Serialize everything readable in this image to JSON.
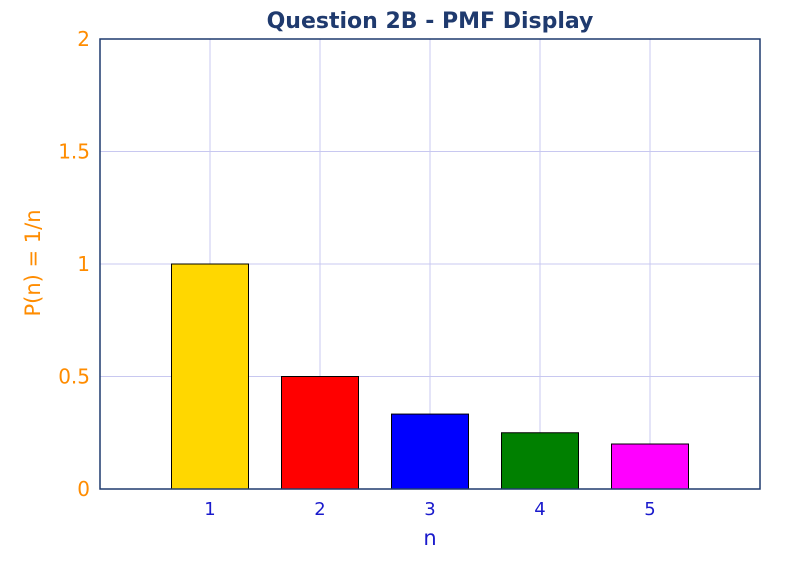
{
  "chart_data": {
    "type": "bar",
    "title": "Question 2B - PMF Display",
    "xlabel": "n",
    "ylabel": "P(n) = 1/n",
    "categories": [
      "1",
      "2",
      "3",
      "4",
      "5"
    ],
    "values": [
      1.0,
      0.5,
      0.333,
      0.25,
      0.2
    ],
    "bar_colors": [
      "#ffd700",
      "#ff0000",
      "#0000ff",
      "#008000",
      "#ff00ff"
    ],
    "ylim": [
      0,
      2
    ],
    "y_ticks": [
      0,
      0.5,
      1,
      1.5,
      2
    ],
    "y_tick_labels": [
      "0",
      "0.5",
      "1",
      "1.5",
      "2"
    ],
    "xlim": [
      0,
      6
    ],
    "grid": true,
    "colors": {
      "title": "#1f3a6e",
      "x_labels": "#1a1acc",
      "y_labels": "#ff8c00",
      "grid": "#c8c8f0",
      "axes": "#1f3a6e"
    }
  }
}
